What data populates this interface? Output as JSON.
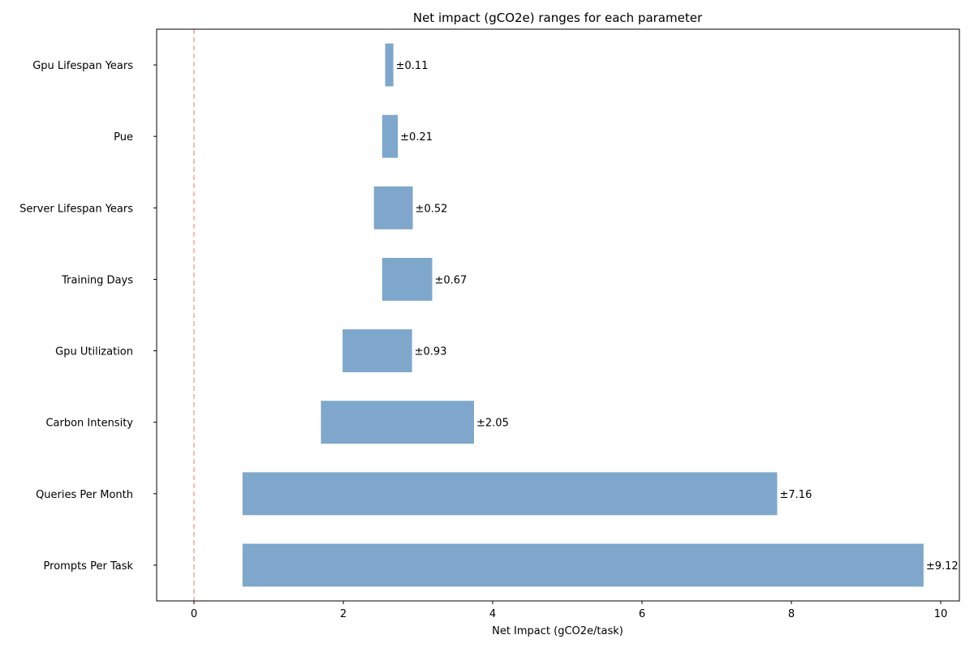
{
  "chart_data": {
    "type": "bar",
    "orientation": "horizontal",
    "title": "Net impact (gCO2e) ranges for each parameter",
    "xlabel": "Net Impact (gCO2e/task)",
    "ylabel": "",
    "xlim": [
      -0.5,
      10.25
    ],
    "xticks": [
      0,
      2,
      4,
      6,
      8,
      10
    ],
    "grid": false,
    "reference_line": {
      "x": 0,
      "style": "dashed",
      "color": "#f4a6a6"
    },
    "bar_color": "#7ea7cb",
    "categories": [
      "Gpu Lifespan Years",
      "Pue",
      "Server Lifespan Years",
      "Training Days",
      "Gpu Utilization",
      "Carbon Intensity",
      "Queries Per Month",
      "Prompts Per Task"
    ],
    "ranges": [
      {
        "low": 2.56,
        "high": 2.67,
        "label": "±0.11"
      },
      {
        "low": 2.52,
        "high": 2.73,
        "label": "±0.21"
      },
      {
        "low": 2.41,
        "high": 2.93,
        "label": "±0.52"
      },
      {
        "low": 2.52,
        "high": 3.19,
        "label": "±0.67"
      },
      {
        "low": 1.99,
        "high": 2.92,
        "label": "±0.93"
      },
      {
        "low": 1.7,
        "high": 3.75,
        "label": "±2.05"
      },
      {
        "low": 0.65,
        "high": 7.81,
        "label": "±7.16"
      },
      {
        "low": 0.65,
        "high": 9.77,
        "label": "±9.12"
      }
    ]
  }
}
